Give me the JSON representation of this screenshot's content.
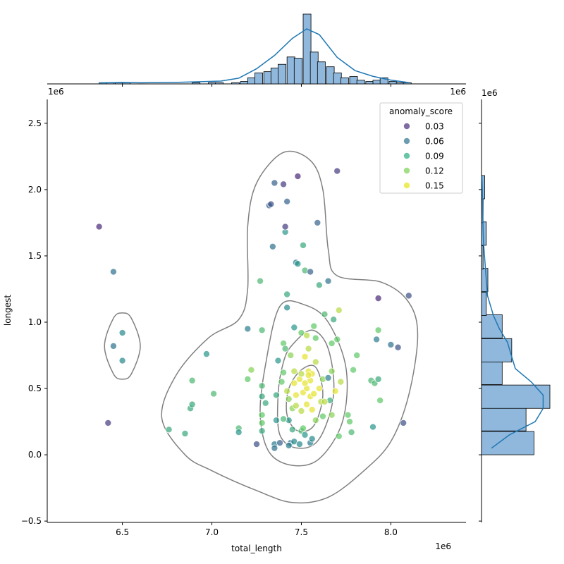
{
  "chart_data": {
    "type": "scatter",
    "xlabel": "total_length",
    "ylabel": "longest",
    "x_offset_label": "1e6",
    "y_offset_label": "1e6",
    "xlim": [
      6.08,
      8.42
    ],
    "ylim": [
      -0.51,
      2.68
    ],
    "x_ticks": [
      "6.5",
      "7.0",
      "7.5",
      "8.0"
    ],
    "y_ticks": [
      "−0.5",
      "0.0",
      "0.5",
      "1.0",
      "1.5",
      "2.0",
      "2.5"
    ],
    "grid": false,
    "legend": {
      "title": "anomaly_score",
      "placement": "top-right",
      "entries": [
        {
          "label": "0.03",
          "color": "#472d7b"
        },
        {
          "label": "0.06",
          "color": "#2c728e"
        },
        {
          "label": "0.09",
          "color": "#28ae80"
        },
        {
          "label": "0.12",
          "color": "#7ad151"
        },
        {
          "label": "0.15",
          "color": "#e5e419"
        }
      ]
    },
    "colors": {
      "hist_fill": "#8fb8dc",
      "kde_line": "#1f77b4",
      "contour": "#808080"
    },
    "top_hist": {
      "bin_start": 6.37,
      "bin_width": 0.0437,
      "counts": [
        1,
        1,
        1,
        0,
        0,
        0,
        0,
        0,
        0,
        0,
        0,
        0,
        0,
        0,
        0,
        0,
        0,
        0,
        0,
        0,
        0,
        0,
        0,
        0,
        2,
        1,
        1,
        0,
        0,
        0,
        1,
        1,
        0,
        1,
        2,
        0,
        0,
        2,
        1,
        0,
        0,
        0,
        0,
        0,
        0,
        0,
        0,
        0,
        0,
        0,
        0,
        0,
        0,
        0,
        0,
        0,
        0,
        0,
        0,
        0,
        0,
        0,
        0,
        0,
        0,
        0,
        0,
        0,
        0,
        0,
        0,
        0,
        0,
        0,
        0,
        0
      ],
      "bars": [
        {
          "x": 6.37,
          "count": 1
        },
        {
          "x": 6.41,
          "count": 1
        },
        {
          "x": 6.46,
          "count": 1
        },
        {
          "x": 6.5,
          "count": 1
        },
        {
          "x": 6.89,
          "count": 1
        },
        {
          "x": 6.98,
          "count": 1
        },
        {
          "x": 7.02,
          "count": 1
        },
        {
          "x": 7.11,
          "count": 1
        },
        {
          "x": 7.16,
          "count": 2
        },
        {
          "x": 7.2,
          "count": 5
        },
        {
          "x": 7.24,
          "count": 9
        },
        {
          "x": 7.29,
          "count": 10
        },
        {
          "x": 7.33,
          "count": 13
        },
        {
          "x": 7.37,
          "count": 16
        },
        {
          "x": 7.42,
          "count": 22
        },
        {
          "x": 7.46,
          "count": 21
        },
        {
          "x": 7.51,
          "count": 57
        },
        {
          "x": 7.55,
          "count": 26
        },
        {
          "x": 7.59,
          "count": 18
        },
        {
          "x": 7.64,
          "count": 14
        },
        {
          "x": 7.68,
          "count": 9
        },
        {
          "x": 7.72,
          "count": 5
        },
        {
          "x": 7.77,
          "count": 6
        },
        {
          "x": 7.81,
          "count": 3
        },
        {
          "x": 7.86,
          "count": 2
        },
        {
          "x": 7.9,
          "count": 3
        },
        {
          "x": 7.94,
          "count": 5
        },
        {
          "x": 7.99,
          "count": 2
        },
        {
          "x": 8.03,
          "count": 1
        },
        {
          "x": 8.07,
          "count": 1
        }
      ],
      "kde": [
        [
          6.37,
          0.5
        ],
        [
          6.5,
          0.8
        ],
        [
          6.6,
          0.6
        ],
        [
          6.8,
          0.8
        ],
        [
          6.95,
          1.2
        ],
        [
          7.05,
          1.5
        ],
        [
          7.15,
          3
        ],
        [
          7.25,
          8
        ],
        [
          7.35,
          15
        ],
        [
          7.45,
          24
        ],
        [
          7.53,
          29
        ],
        [
          7.6,
          26
        ],
        [
          7.7,
          14
        ],
        [
          7.8,
          7
        ],
        [
          7.9,
          4
        ],
        [
          8.0,
          2
        ],
        [
          8.1,
          0.7
        ]
      ]
    },
    "right_hist": {
      "bars": [
        {
          "y": 0.0,
          "count": 33
        },
        {
          "y": 0.18,
          "count": 28
        },
        {
          "y": 0.35,
          "count": 43
        },
        {
          "y": 0.53,
          "count": 13
        },
        {
          "y": 0.7,
          "count": 19
        },
        {
          "y": 0.88,
          "count": 13
        },
        {
          "y": 1.05,
          "count": 3
        },
        {
          "y": 1.23,
          "count": 4
        },
        {
          "y": 1.4,
          "count": 1
        },
        {
          "y": 1.58,
          "count": 3
        },
        {
          "y": 1.75,
          "count": 1
        },
        {
          "y": 1.93,
          "count": 2
        }
      ],
      "bin_width": 0.176,
      "kde": [
        [
          0.05,
          5
        ],
        [
          0.15,
          14
        ],
        [
          0.25,
          27
        ],
        [
          0.35,
          31
        ],
        [
          0.45,
          31
        ],
        [
          0.55,
          25
        ],
        [
          0.65,
          17
        ],
        [
          0.75,
          15
        ],
        [
          0.85,
          13
        ],
        [
          0.95,
          9
        ],
        [
          1.05,
          6
        ],
        [
          1.2,
          3
        ],
        [
          1.4,
          2
        ],
        [
          1.6,
          1
        ],
        [
          1.8,
          0.6
        ],
        [
          2.0,
          0.4
        ],
        [
          2.1,
          0.2
        ]
      ]
    },
    "points": [
      [
        6.37,
        1.72,
        0.02
      ],
      [
        6.45,
        1.38,
        0.06
      ],
      [
        6.45,
        0.82,
        0.06
      ],
      [
        6.5,
        0.92,
        0.08
      ],
      [
        6.5,
        0.71,
        0.08
      ],
      [
        6.42,
        0.24,
        0.03
      ],
      [
        6.76,
        0.19,
        0.1
      ],
      [
        6.85,
        0.16,
        0.1
      ],
      [
        6.88,
        0.35,
        0.1
      ],
      [
        6.89,
        0.38,
        0.1
      ],
      [
        6.89,
        0.56,
        0.11
      ],
      [
        6.97,
        0.76,
        0.09
      ],
      [
        7.01,
        0.46,
        0.11
      ],
      [
        7.15,
        0.2,
        0.11
      ],
      [
        7.15,
        0.17,
        0.09
      ],
      [
        7.2,
        0.95,
        0.07
      ],
      [
        7.2,
        0.57,
        0.12
      ],
      [
        7.22,
        0.64,
        0.13
      ],
      [
        7.25,
        0.08,
        0.04
      ],
      [
        7.27,
        1.31,
        0.11
      ],
      [
        7.28,
        0.52,
        0.11
      ],
      [
        7.28,
        0.44,
        0.1
      ],
      [
        7.28,
        0.3,
        0.12
      ],
      [
        7.28,
        0.24,
        0.12
      ],
      [
        7.28,
        0.18,
        0.1
      ],
      [
        7.28,
        0.94,
        0.11
      ],
      [
        7.3,
        0.39,
        0.1
      ],
      [
        7.32,
        1.88,
        0.05
      ],
      [
        7.33,
        1.89,
        0.04
      ],
      [
        7.35,
        2.05,
        0.05
      ],
      [
        7.34,
        1.57,
        0.06
      ],
      [
        7.35,
        0.08,
        0.07
      ],
      [
        7.35,
        0.05,
        0.06
      ],
      [
        7.36,
        0.45,
        0.1
      ],
      [
        7.37,
        0.71,
        0.09
      ],
      [
        7.38,
        0.09,
        0.05
      ],
      [
        7.39,
        0.55,
        0.12
      ],
      [
        7.4,
        2.04,
        0.03
      ],
      [
        7.41,
        1.68,
        0.09
      ],
      [
        7.41,
        1.72,
        0.03
      ],
      [
        7.42,
        1.91,
        0.05
      ],
      [
        7.42,
        1.11,
        0.08
      ],
      [
        7.42,
        1.21,
        0.1
      ],
      [
        7.4,
        0.84,
        0.12
      ],
      [
        7.41,
        0.8,
        0.11
      ],
      [
        7.42,
        0.48,
        0.14
      ],
      [
        7.43,
        0.42,
        0.13
      ],
      [
        7.43,
        0.26,
        0.09
      ],
      [
        7.44,
        0.09,
        0.06
      ],
      [
        7.45,
        0.35,
        0.13
      ],
      [
        7.46,
        0.96,
        0.09
      ],
      [
        7.46,
        0.63,
        0.14
      ],
      [
        7.47,
        1.45,
        0.07
      ],
      [
        7.48,
        1.44,
        0.09
      ],
      [
        7.48,
        2.1,
        0.02
      ],
      [
        7.49,
        0.57,
        0.15
      ],
      [
        7.5,
        0.92,
        0.12
      ],
      [
        7.5,
        0.33,
        0.14
      ],
      [
        7.5,
        0.18,
        0.11
      ],
      [
        7.51,
        1.58,
        0.1
      ],
      [
        7.51,
        0.47,
        0.15
      ],
      [
        7.52,
        1.39,
        0.11
      ],
      [
        7.52,
        0.74,
        0.15
      ],
      [
        7.53,
        0.9,
        0.14
      ],
      [
        7.53,
        0.5,
        0.15
      ],
      [
        7.54,
        0.8,
        0.14
      ],
      [
        7.54,
        0.63,
        0.15
      ],
      [
        7.55,
        0.56,
        0.15
      ],
      [
        7.55,
        0.44,
        0.15
      ],
      [
        7.55,
        1.38,
        0.05
      ],
      [
        7.56,
        0.34,
        0.15
      ],
      [
        7.57,
        0.97,
        0.12
      ],
      [
        7.58,
        0.88,
        0.12
      ],
      [
        7.59,
        1.75,
        0.05
      ],
      [
        7.6,
        1.28,
        0.1
      ],
      [
        7.61,
        0.4,
        0.14
      ],
      [
        7.62,
        0.29,
        0.12
      ],
      [
        7.62,
        0.57,
        0.13
      ],
      [
        7.63,
        1.06,
        0.11
      ],
      [
        7.65,
        1.31,
        0.06
      ],
      [
        7.65,
        0.58,
        0.07
      ],
      [
        7.66,
        0.41,
        0.1
      ],
      [
        7.67,
        0.84,
        0.12
      ],
      [
        7.67,
        0.63,
        0.13
      ],
      [
        7.68,
        1.02,
        0.1
      ],
      [
        7.69,
        0.48,
        0.15
      ],
      [
        7.7,
        2.14,
        0.03
      ],
      [
        7.7,
        0.87,
        0.12
      ],
      [
        7.71,
        1.09,
        0.14
      ],
      [
        7.71,
        0.14,
        0.12
      ],
      [
        7.72,
        0.55,
        0.14
      ],
      [
        7.76,
        0.3,
        0.12
      ],
      [
        7.77,
        0.25,
        0.12
      ],
      [
        7.78,
        0.17,
        0.11
      ],
      [
        7.79,
        0.64,
        0.12
      ],
      [
        7.81,
        0.75,
        0.12
      ],
      [
        7.89,
        0.56,
        0.11
      ],
      [
        7.9,
        0.21,
        0.09
      ],
      [
        7.91,
        0.54,
        0.11
      ],
      [
        7.92,
        0.87,
        0.07
      ],
      [
        7.93,
        1.18,
        0.02
      ],
      [
        7.93,
        0.57,
        0.1
      ],
      [
        7.93,
        0.94,
        0.12
      ],
      [
        7.94,
        0.41,
        0.12
      ],
      [
        8.0,
        0.83,
        0.06
      ],
      [
        8.04,
        0.81,
        0.04
      ],
      [
        8.07,
        0.24,
        0.04
      ],
      [
        8.1,
        1.2,
        0.04
      ],
      [
        7.43,
        0.07,
        0.07
      ],
      [
        7.46,
        0.1,
        0.08
      ],
      [
        7.49,
        0.08,
        0.08
      ],
      [
        7.52,
        0.15,
        0.09
      ],
      [
        7.55,
        0.09,
        0.07
      ],
      [
        7.56,
        0.12,
        0.08
      ],
      [
        7.45,
        0.19,
        0.1
      ],
      [
        7.51,
        0.2,
        0.12
      ],
      [
        7.53,
        0.38,
        0.15
      ],
      [
        7.56,
        0.61,
        0.15
      ],
      [
        7.57,
        0.46,
        0.15
      ],
      [
        7.47,
        0.37,
        0.14
      ],
      [
        7.47,
        0.45,
        0.15
      ],
      [
        7.46,
        0.54,
        0.15
      ],
      [
        7.54,
        0.6,
        0.15
      ],
      [
        7.58,
        0.7,
        0.14
      ],
      [
        7.52,
        0.54,
        0.15
      ],
      [
        7.5,
        0.61,
        0.14
      ],
      [
        7.44,
        0.75,
        0.13
      ],
      [
        7.6,
        0.5,
        0.15
      ],
      [
        7.4,
        0.27,
        0.11
      ],
      [
        7.36,
        0.26,
        0.09
      ],
      [
        7.58,
        0.26,
        0.13
      ],
      [
        7.63,
        0.4,
        0.14
      ],
      [
        7.67,
        0.3,
        0.13
      ],
      [
        7.4,
        0.62,
        0.12
      ]
    ],
    "contours": [
      [
        [
          6.5,
          1.07
        ],
        [
          6.55,
          1.03
        ],
        [
          6.6,
          0.82
        ],
        [
          6.55,
          0.61
        ],
        [
          6.5,
          0.57
        ],
        [
          6.45,
          0.61
        ],
        [
          6.4,
          0.82
        ],
        [
          6.45,
          1.03
        ]
      ],
      [
        [
          7.25,
          2.05
        ],
        [
          7.4,
          2.28
        ],
        [
          7.55,
          2.22
        ],
        [
          7.62,
          2.0
        ],
        [
          7.65,
          1.55
        ],
        [
          7.7,
          1.35
        ],
        [
          7.95,
          1.3
        ],
        [
          8.1,
          1.15
        ],
        [
          8.15,
          0.9
        ],
        [
          8.1,
          0.45
        ],
        [
          8.0,
          0.1
        ],
        [
          7.85,
          -0.12
        ],
        [
          7.65,
          -0.32
        ],
        [
          7.45,
          -0.36
        ],
        [
          7.25,
          -0.27
        ],
        [
          7.0,
          -0.12
        ],
        [
          6.85,
          0.0
        ],
        [
          6.72,
          0.28
        ],
        [
          6.8,
          0.6
        ],
        [
          6.98,
          0.88
        ],
        [
          7.15,
          1.02
        ],
        [
          7.2,
          1.25
        ],
        [
          7.2,
          1.72
        ]
      ],
      [
        [
          7.38,
          1.12
        ],
        [
          7.52,
          1.13
        ],
        [
          7.65,
          1.0
        ],
        [
          7.75,
          0.65
        ],
        [
          7.73,
          0.25
        ],
        [
          7.6,
          -0.03
        ],
        [
          7.45,
          -0.08
        ],
        [
          7.32,
          0.02
        ],
        [
          7.27,
          0.3
        ],
        [
          7.3,
          0.68
        ]
      ],
      [
        [
          7.45,
          0.83
        ],
        [
          7.56,
          0.94
        ],
        [
          7.65,
          0.8
        ],
        [
          7.68,
          0.45
        ],
        [
          7.6,
          0.12
        ],
        [
          7.48,
          0.05
        ],
        [
          7.38,
          0.15
        ],
        [
          7.37,
          0.45
        ],
        [
          7.4,
          0.7
        ]
      ],
      [
        [
          7.5,
          0.64
        ],
        [
          7.58,
          0.66
        ],
        [
          7.62,
          0.45
        ],
        [
          7.57,
          0.22
        ],
        [
          7.48,
          0.18
        ],
        [
          7.42,
          0.3
        ],
        [
          7.43,
          0.5
        ]
      ]
    ]
  }
}
